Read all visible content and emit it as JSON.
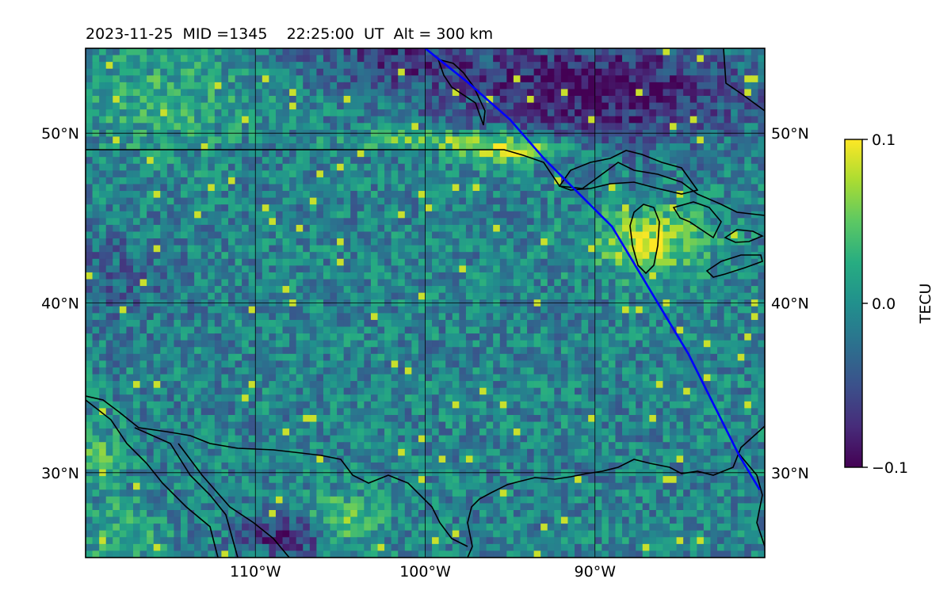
{
  "chart_data": {
    "type": "heatmap",
    "title": "2023-11-25  MID =1345    22:25:00  UT  Alt = 300 km",
    "map": {
      "lon_range": [
        -120,
        -80
      ],
      "lat_range": [
        25,
        55
      ],
      "lon_ticks": [
        {
          "value": -110,
          "label": "110°W"
        },
        {
          "value": -100,
          "label": "100°W"
        },
        {
          "value": -90,
          "label": "90°W"
        }
      ],
      "lat_ticks": [
        {
          "value": 50,
          "label": "50°N"
        },
        {
          "value": 40,
          "label": "40°N"
        },
        {
          "value": 30,
          "label": "30°N"
        }
      ],
      "grid": true,
      "coastlines": true,
      "borders": true
    },
    "colorbar": {
      "label": "TECU",
      "colormap": "viridis",
      "vmin": -0.1,
      "vmax": 0.1,
      "ticks": [
        {
          "value": 0.1,
          "label": "0.1"
        },
        {
          "value": 0.0,
          "label": "0.0"
        },
        {
          "value": -0.1,
          "label": "−0.1"
        }
      ]
    },
    "highlight_features": [
      {
        "name": "enhanced TEC band",
        "region": "north of Great Lakes / along 48°N",
        "value": 0.1
      },
      {
        "name": "depleted TEC region",
        "region": "southern Canada",
        "value": -0.1
      }
    ],
    "terminator_line": {
      "color": "#0000ff",
      "points": [
        [
          -100.0,
          55.0
        ],
        [
          -97.5,
          53.0
        ],
        [
          -95.0,
          50.8
        ],
        [
          -93.0,
          48.5
        ],
        [
          -91.0,
          46.5
        ],
        [
          -89.0,
          44.5
        ],
        [
          -87.5,
          42.0
        ],
        [
          -86.0,
          39.5
        ],
        [
          -84.5,
          37.0
        ],
        [
          -83.0,
          34.0
        ],
        [
          -81.5,
          31.0
        ],
        [
          -80.3,
          29.0
        ]
      ]
    }
  }
}
